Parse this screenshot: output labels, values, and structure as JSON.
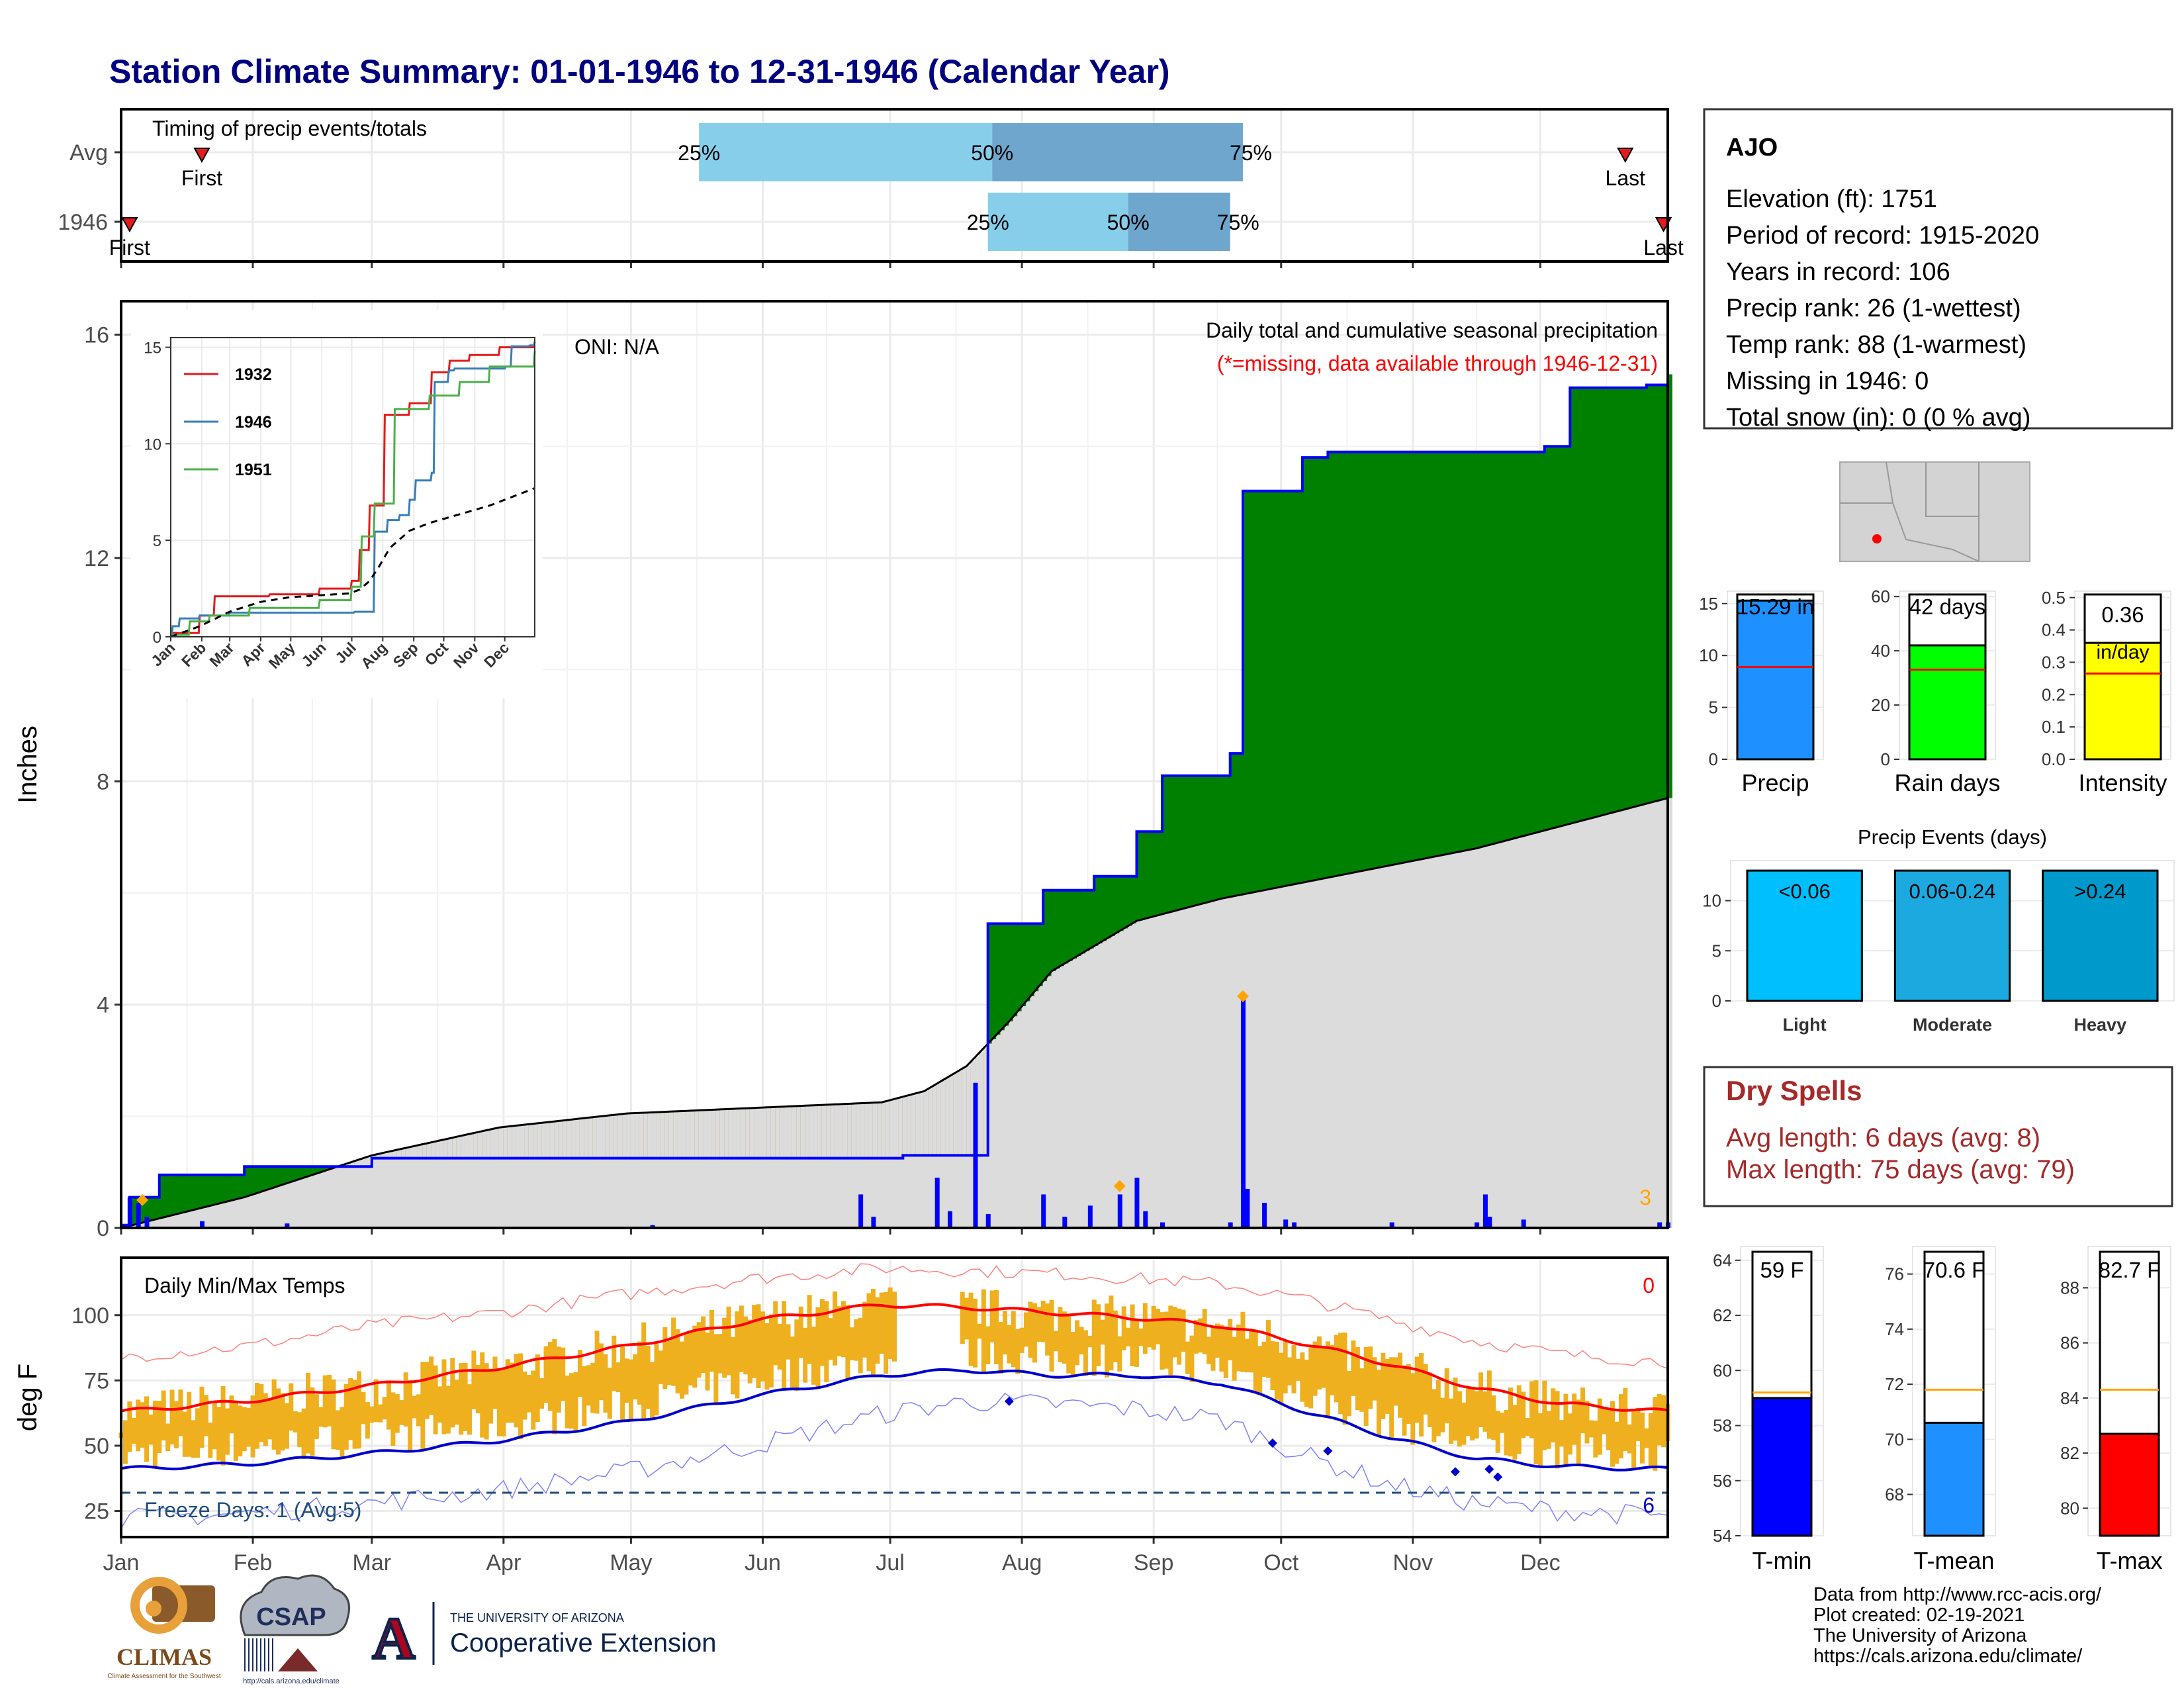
{
  "title": "Station Climate Summary: 01-01-1946 to 12-31-1946 (Calendar Year)",
  "months": [
    "Jan",
    "Feb",
    "Mar",
    "Apr",
    "May",
    "Jun",
    "Jul",
    "Aug",
    "Sep",
    "Oct",
    "Nov",
    "Dec"
  ],
  "timing": {
    "label": "Timing of precip events/totals",
    "rows": [
      {
        "name": "Avg",
        "first": "First",
        "last": "Last",
        "p25": "25%",
        "p50": "50%",
        "p75": "75%",
        "first_doy": 20,
        "last_doy": 355,
        "p25_doy": 137,
        "p50_doy": 206,
        "p75_doy": 265
      },
      {
        "name": "1946",
        "first": "First",
        "last": "Last",
        "p25": "25%",
        "p50": "50%",
        "p75": "75%",
        "first_doy": 3,
        "last_doy": 364,
        "p25_doy": 205,
        "p50_doy": 238,
        "p75_doy": 262
      }
    ],
    "colors": {
      "light": "#87ceeb",
      "dark": "#6ea6cd",
      "marker": "#e41a1c"
    }
  },
  "precip_panel": {
    "ylabel": "Inches",
    "yticks": [
      0,
      4,
      8,
      12,
      16
    ],
    "ylim": [
      0,
      16.6
    ],
    "note1": "Daily total and cumulative seasonal precipitation",
    "note2": "(*=missing, data available through 1946-12-31)",
    "oni": "ONI: N/A",
    "corner_count": "3",
    "colors": {
      "above": "#008000",
      "below": "#8b5a00",
      "avg": "#dcdcdc",
      "line": "#0000ff",
      "bars": "#0000ff",
      "marker": "#ffa500"
    }
  },
  "inset": {
    "yticks": [
      0,
      5,
      10,
      15
    ],
    "legend": [
      {
        "name": "1932",
        "color": "#e41a1c"
      },
      {
        "name": "1946",
        "color": "#377eb8"
      },
      {
        "name": "1951",
        "color": "#4daf4a"
      }
    ]
  },
  "temp_panel": {
    "ylabel": "deg F",
    "label": "Daily Min/Max Temps",
    "yticks": [
      25,
      50,
      75,
      100
    ],
    "ylim": [
      15,
      122
    ],
    "freeze": "Freeze Days: 1 (Avg:5)",
    "count_top": "0",
    "count_bottom": "6",
    "colors": {
      "bars": "#efb01f",
      "max": "#ff0000",
      "min": "#0000cd",
      "freeze": "#1f4e79"
    }
  },
  "station": {
    "name": "AJO",
    "lines": [
      "Elevation (ft): 1751",
      "Period of record: 1915-2020",
      "Years in record: 106",
      "Precip rank: 26 (1-wettest)",
      "Temp rank: 88 (1-warmest)",
      "Missing in 1946: 0",
      "Total snow (in): 0 (0 % avg)"
    ]
  },
  "mini_bars": [
    {
      "name": "Precip",
      "value": 15.29,
      "label": "15.29 in",
      "avg": 8.9,
      "ymax": 16.2,
      "yticks": [
        0,
        5,
        10,
        15
      ],
      "color": "#1e90ff"
    },
    {
      "name": "Rain days",
      "value": 42,
      "label": "42 days",
      "avg": 33,
      "ymax": 62,
      "yticks": [
        0,
        20,
        40,
        60
      ],
      "color": "#00ff00"
    },
    {
      "name": "Intensity",
      "value": 0.36,
      "label": "0.36",
      "label2": "in/day",
      "avg": 0.265,
      "ymax": 0.52,
      "yticks": [
        "0.0",
        "0.1",
        "0.2",
        "0.3",
        "0.4",
        "0.5"
      ],
      "color": "#ffff00"
    }
  ],
  "precip_events": {
    "title": "Precip Events (days)",
    "yticks": [
      0,
      5,
      10
    ],
    "bars": [
      {
        "name": "Light",
        "label": "<0.06",
        "value": 13,
        "color": "#00bfff"
      },
      {
        "name": "Moderate",
        "label": "0.06-0.24",
        "value": 13,
        "color": "#1ca9df"
      },
      {
        "name": "Heavy",
        "label": ">0.24",
        "value": 13,
        "color": "#0099cc"
      }
    ]
  },
  "dry_spells": {
    "title": "Dry Spells",
    "avg_line": "Avg length: 6 days (avg: 8)",
    "max_line": "Max length: 75 days (avg: 79)"
  },
  "temp_bars": [
    {
      "name": "T-min",
      "value": 59.0,
      "label": "59 F",
      "avg": 59.2,
      "ymin": 54,
      "ymax": 64.5,
      "yticks": [
        54,
        56,
        58,
        60,
        62,
        64
      ],
      "color": "#0000ff"
    },
    {
      "name": "T-mean",
      "value": 70.6,
      "label": "70.6 F",
      "avg": 71.8,
      "ymin": 66.5,
      "ymax": 77,
      "yticks": [
        68,
        70,
        72,
        74,
        76
      ],
      "color": "#1e90ff"
    },
    {
      "name": "T-max",
      "value": 82.7,
      "label": "82.7 F",
      "avg": 84.3,
      "ymin": 79,
      "ymax": 89.5,
      "yticks": [
        80,
        82,
        84,
        86,
        88
      ],
      "color": "#ff0000"
    }
  ],
  "credits": [
    "Data from http://www.rcc-acis.org/",
    "Plot created: 02-19-2021",
    "The University of Arizona",
    "https://cals.arizona.edu/climate/"
  ],
  "logos": {
    "climas": "CLIMAS",
    "climas_sub": "Climate Assessment for the Southwest",
    "csap": "CSAP",
    "csap_url": "http://cals.arizona.edu/climate",
    "ua_letter": "A",
    "ua_small": "THE UNIVERSITY OF ARIZONA",
    "ua_big": "Cooperative Extension"
  },
  "chart_data": [
    {
      "type": "area",
      "title": "Daily total and cumulative seasonal precipitation",
      "ylabel": "Inches",
      "ylim": [
        0,
        16.6
      ],
      "x_unit": "day of year 1946",
      "series": [
        {
          "name": "1946",
          "x": [
            1,
            3,
            5,
            10,
            15,
            20,
            30,
            45,
            60,
            90,
            120,
            150,
            180,
            185,
            193,
            205,
            210,
            216,
            218,
            230,
            236,
            240,
            246,
            258,
            262,
            265,
            279,
            285,
            300,
            310,
            322,
            336,
            342,
            360,
            365
          ],
          "values": [
            0.05,
            0.55,
            0.55,
            0.95,
            0.95,
            0.95,
            1.1,
            1.1,
            1.25,
            1.25,
            1.25,
            1.25,
            1.25,
            1.3,
            1.3,
            5.45,
            5.45,
            5.45,
            6.05,
            6.3,
            6.3,
            7.1,
            8.1,
            8.1,
            8.5,
            13.2,
            13.8,
            13.9,
            13.9,
            13.9,
            13.9,
            14.0,
            15.05,
            15.1,
            15.29
          ]
        },
        {
          "x": [
            1,
            30,
            60,
            90,
            120,
            150,
            180,
            190,
            200,
            210,
            220,
            240,
            260,
            280,
            300,
            320,
            340,
            365
          ],
          "values": [
            0,
            0.55,
            1.3,
            1.8,
            2.05,
            2.15,
            2.25,
            2.45,
            2.9,
            3.7,
            4.6,
            5.5,
            5.9,
            6.2,
            6.5,
            6.8,
            7.2,
            7.7
          ]
        }
      ],
      "daily_bars": [
        {
          "x": 3,
          "y": 0.55
        },
        {
          "x": 5,
          "y": 0.45
        },
        {
          "x": 7,
          "y": 0.2
        },
        {
          "x": 20,
          "y": 0.12
        },
        {
          "x": 40,
          "y": 0.08
        },
        {
          "x": 126,
          "y": 0.05
        },
        {
          "x": 175,
          "y": 0.6
        },
        {
          "x": 178,
          "y": 0.2
        },
        {
          "x": 193,
          "y": 0.9
        },
        {
          "x": 196,
          "y": 0.3
        },
        {
          "x": 202,
          "y": 2.6
        },
        {
          "x": 205,
          "y": 0.25
        },
        {
          "x": 218,
          "y": 0.6
        },
        {
          "x": 223,
          "y": 0.2
        },
        {
          "x": 229,
          "y": 0.4
        },
        {
          "x": 236,
          "y": 0.6
        },
        {
          "x": 240,
          "y": 0.9
        },
        {
          "x": 242,
          "y": 0.3
        },
        {
          "x": 246,
          "y": 0.1
        },
        {
          "x": 262,
          "y": 0.1
        },
        {
          "x": 265,
          "y": 4.1
        },
        {
          "x": 266,
          "y": 0.7
        },
        {
          "x": 270,
          "y": 0.45
        },
        {
          "x": 275,
          "y": 0.15
        },
        {
          "x": 277,
          "y": 0.1
        },
        {
          "x": 300,
          "y": 0.1
        },
        {
          "x": 320,
          "y": 0.1
        },
        {
          "x": 322,
          "y": 0.6
        },
        {
          "x": 323,
          "y": 0.2
        },
        {
          "x": 331,
          "y": 0.15
        },
        {
          "x": 363,
          "y": 0.1
        },
        {
          "x": 365,
          "y": 0.1
        }
      ],
      "record_markers": [
        {
          "x": 6,
          "y": 0.5
        },
        {
          "x": 236,
          "y": 0.75
        },
        {
          "x": 265,
          "y": 4.15
        }
      ]
    },
    {
      "type": "line",
      "title": "Daily Min/Max Temps",
      "ylabel": "deg F",
      "ylim": [
        15,
        122
      ],
      "series": [
        {
          "name": "Avg max",
          "x": [
            1,
            30,
            60,
            90,
            120,
            150,
            180,
            200,
            220,
            240,
            260,
            280,
            300,
            320,
            340,
            365
          ],
          "values": [
            63,
            67,
            73,
            80,
            88,
            98,
            104,
            103,
            101,
            99,
            96,
            89,
            81,
            72,
            66,
            63
          ]
        },
        {
          "name": "Avg min",
          "x": [
            1,
            30,
            60,
            90,
            120,
            150,
            180,
            200,
            220,
            240,
            260,
            280,
            300,
            320,
            340,
            365
          ],
          "values": [
            41,
            43,
            47,
            52,
            59,
            69,
            77,
            79,
            77,
            77,
            74,
            63,
            53,
            45,
            42,
            41
          ]
        },
        {
          "name": "Record max",
          "x": [
            1,
            30,
            60,
            90,
            120,
            150,
            180,
            200,
            220,
            240,
            260,
            280,
            300,
            320,
            340,
            365
          ],
          "values": [
            84,
            88,
            96,
            101,
            108,
            114,
            118,
            117,
            116,
            114,
            112,
            106,
            98,
            90,
            85,
            82
          ]
        },
        {
          "name": "Record min",
          "x": [
            1,
            30,
            60,
            90,
            120,
            150,
            180,
            200,
            220,
            240,
            260,
            280,
            300,
            320,
            340,
            365
          ],
          "values": [
            22,
            24,
            28,
            33,
            40,
            50,
            62,
            67,
            66,
            64,
            60,
            46,
            35,
            28,
            25,
            23
          ]
        }
      ],
      "freeze_line": 32
    }
  ]
}
